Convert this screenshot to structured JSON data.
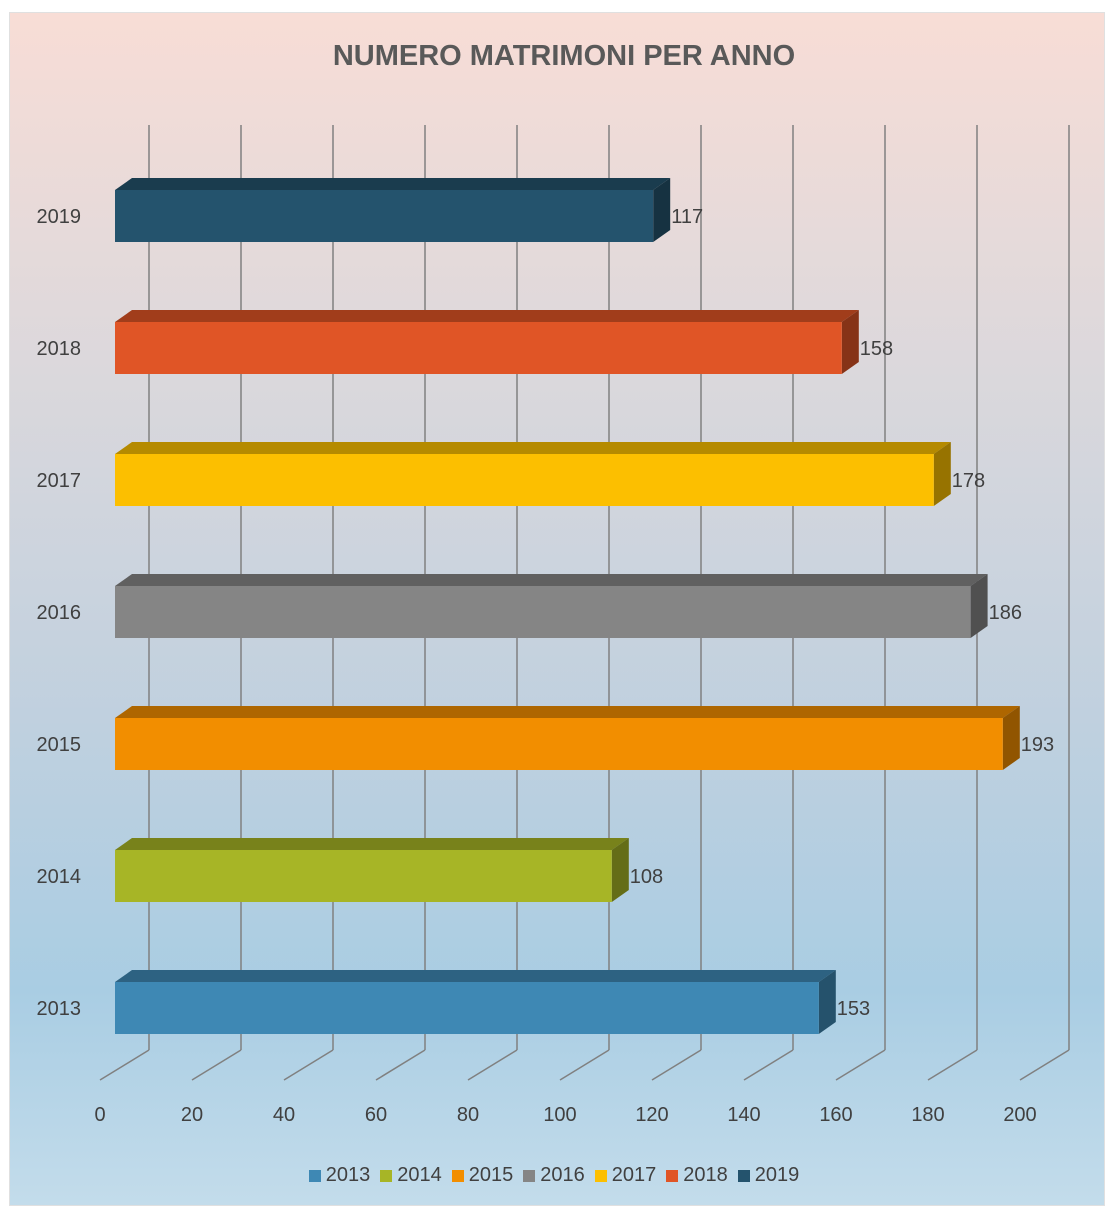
{
  "chart_data": {
    "type": "bar",
    "orientation": "horizontal",
    "three_d": true,
    "title": "NUMERO MATRIMONI PER ANNO",
    "categories": [
      "2013",
      "2014",
      "2015",
      "2016",
      "2017",
      "2018",
      "2019"
    ],
    "values": [
      153,
      108,
      193,
      186,
      178,
      158,
      117
    ],
    "colors": [
      "#3e88b4",
      "#a7b526",
      "#f28e00",
      "#858585",
      "#fcbf00",
      "#e05526",
      "#24536d"
    ],
    "xlim": [
      0,
      200
    ],
    "x_ticks": [
      "0",
      "20",
      "40",
      "60",
      "80",
      "100",
      "120",
      "140",
      "160",
      "180",
      "200"
    ],
    "grid": true,
    "data_labels": true,
    "legend": {
      "position": "bottom",
      "entries": [
        "2013",
        "2014",
        "2015",
        "2016",
        "2017",
        "2018",
        "2019"
      ]
    }
  }
}
